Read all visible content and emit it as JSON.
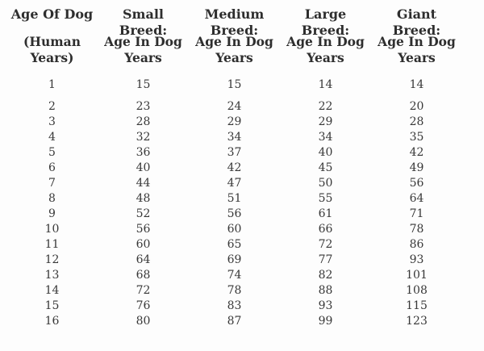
{
  "table": {
    "columns": [
      {
        "title": "Age Of Dog",
        "subtitle": "(Human\nYears)"
      },
      {
        "title": "Small Breed:",
        "subtitle": "Age In Dog\nYears"
      },
      {
        "title": "Medium Breed:",
        "subtitle": "Age In Dog\nYears"
      },
      {
        "title": "Large Breed:",
        "subtitle": "Age In Dog\nYears"
      },
      {
        "title": "Giant Breed:",
        "subtitle": "Age In Dog\nYears"
      }
    ],
    "rows": [
      [
        "1",
        "15",
        "15",
        "14",
        "14"
      ],
      [
        "2",
        "23",
        "24",
        "22",
        "20"
      ],
      [
        "3",
        "28",
        "29",
        "29",
        "28"
      ],
      [
        "4",
        "32",
        "34",
        "34",
        "35"
      ],
      [
        "5",
        "36",
        "37",
        "40",
        "42"
      ],
      [
        "6",
        "40",
        "42",
        "45",
        "49"
      ],
      [
        "7",
        "44",
        "47",
        "50",
        "56"
      ],
      [
        "8",
        "48",
        "51",
        "55",
        "64"
      ],
      [
        "9",
        "52",
        "56",
        "61",
        "71"
      ],
      [
        "10",
        "56",
        "60",
        "66",
        "78"
      ],
      [
        "11",
        "60",
        "65",
        "72",
        "86"
      ],
      [
        "12",
        "64",
        "69",
        "77",
        "93"
      ],
      [
        "13",
        "68",
        "74",
        "82",
        "101"
      ],
      [
        "14",
        "72",
        "78",
        "88",
        "108"
      ],
      [
        "15",
        "76",
        "83",
        "93",
        "115"
      ],
      [
        "16",
        "80",
        "87",
        "99",
        "123"
      ]
    ]
  },
  "colors": {
    "background": "#fdfdfd",
    "text": "#333333"
  },
  "chart_data": {
    "type": "table",
    "title": "",
    "x_header": "Age Of Dog (Human Years)",
    "categories": [
      1,
      2,
      3,
      4,
      5,
      6,
      7,
      8,
      9,
      10,
      11,
      12,
      13,
      14,
      15,
      16
    ],
    "series": [
      {
        "name": "Small Breed: Age In Dog Years",
        "values": [
          15,
          23,
          28,
          32,
          36,
          40,
          44,
          48,
          52,
          56,
          60,
          64,
          68,
          72,
          76,
          80
        ]
      },
      {
        "name": "Medium Breed: Age In Dog Years",
        "values": [
          15,
          24,
          29,
          34,
          37,
          42,
          47,
          51,
          56,
          60,
          65,
          69,
          74,
          78,
          83,
          87
        ]
      },
      {
        "name": "Large Breed: Age In Dog Years",
        "values": [
          14,
          22,
          29,
          34,
          40,
          45,
          50,
          55,
          61,
          66,
          72,
          77,
          82,
          88,
          93,
          99
        ]
      },
      {
        "name": "Giant Breed: Age In Dog Years",
        "values": [
          14,
          20,
          28,
          35,
          42,
          49,
          56,
          64,
          71,
          78,
          86,
          93,
          101,
          108,
          115,
          123
        ]
      }
    ],
    "layout": {
      "grid": false,
      "legend": "none"
    }
  }
}
